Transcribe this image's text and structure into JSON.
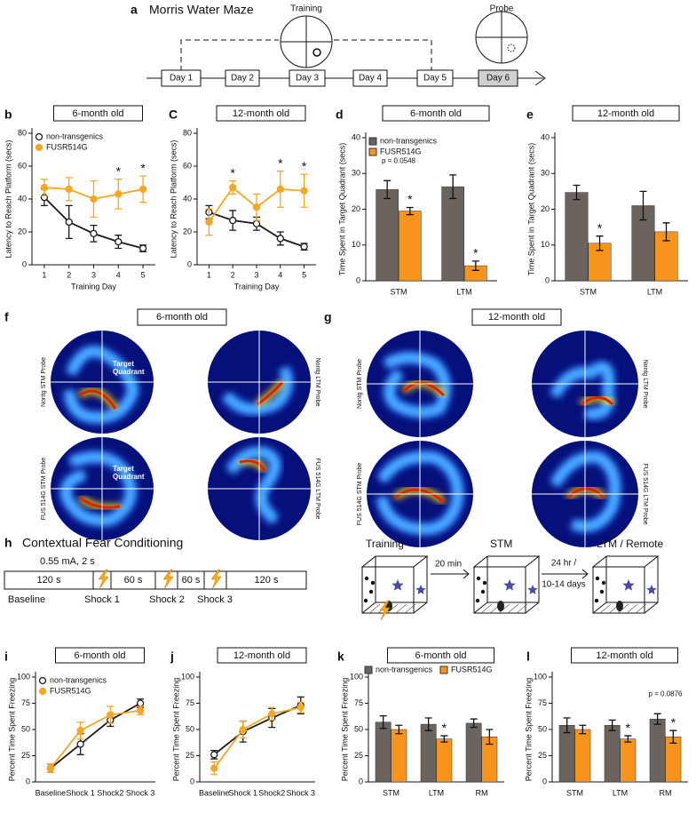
{
  "panel_a": {
    "label": "a",
    "title": "Morris Water Maze",
    "training": "Training",
    "probe": "Probe",
    "days": [
      "Day 1",
      "Day 2",
      "Day 3",
      "Day 4",
      "Day 5",
      "Day 6"
    ]
  },
  "chart_data": [
    {
      "type": "line",
      "label": "b",
      "title": "6-month old",
      "x_label": "Training Day",
      "y_label": "Latency to Reach Platform (secs)",
      "x": [
        1,
        2,
        3,
        4,
        5
      ],
      "xlim": [
        0.5,
        5.5
      ],
      "xticks": [
        1,
        2,
        3,
        4,
        5
      ],
      "ylim": [
        0,
        80
      ],
      "yticks": [
        0,
        20,
        40,
        60,
        80
      ],
      "legend": "top-left",
      "series": [
        {
          "name": "non-transgenics",
          "color": "#1a1a1a",
          "values": [
            41,
            26,
            19,
            14,
            10
          ],
          "errors": [
            5,
            10,
            5,
            4,
            2
          ]
        },
        {
          "name": "FUSR514G",
          "color": "#f5a623",
          "values": [
            47,
            46,
            40,
            43,
            46
          ],
          "errors": [
            5,
            7,
            11,
            9,
            8
          ],
          "significance": [
            null,
            null,
            null,
            "*",
            "*"
          ]
        }
      ]
    },
    {
      "type": "line",
      "label": "C",
      "title": "12-month old",
      "x_label": "Training Day",
      "y_label": "Latency to Reach Platform (secs)",
      "x": [
        1,
        2,
        3,
        4,
        5
      ],
      "xlim": [
        0.5,
        5.5
      ],
      "xticks": [
        1,
        2,
        3,
        4,
        5
      ],
      "ylim": [
        0,
        80
      ],
      "yticks": [
        0,
        20,
        40,
        60,
        80
      ],
      "series": [
        {
          "color": "#1a1a1a",
          "values": [
            32,
            27,
            25,
            16,
            11
          ],
          "errors": [
            4,
            6,
            4,
            4,
            2
          ]
        },
        {
          "color": "#f5a623",
          "values": [
            26,
            47,
            35,
            46,
            45
          ],
          "errors": [
            8,
            4,
            8,
            11,
            10
          ],
          "significance": [
            null,
            "*",
            null,
            "*",
            "*"
          ]
        }
      ]
    },
    {
      "type": "bar",
      "label": "d",
      "title": "6-month old",
      "y_label": "Time Spent in Target Quadrant (secs)",
      "categories": [
        "STM",
        "LTM"
      ],
      "ylim": [
        0,
        40
      ],
      "yticks": [
        0,
        10,
        20,
        30,
        40
      ],
      "legend": "top-left",
      "annotation": {
        "text": "p = 0.0548",
        "index": 0
      },
      "series": [
        {
          "name": "non-transgenics",
          "color": "#6b635e",
          "values": [
            25.5,
            26.3
          ],
          "errors": [
            2.5,
            3.3
          ]
        },
        {
          "name": "FUSR514G",
          "color": "#f7941d",
          "values": [
            19.5,
            4.2
          ],
          "errors": [
            1,
            1.3
          ],
          "significance": [
            "*",
            "*"
          ]
        }
      ]
    },
    {
      "type": "bar",
      "label": "e",
      "title": "12-month old",
      "y_label": "Time Spent in Target Quadrant (secs)",
      "categories": [
        "STM",
        "LTM"
      ],
      "ylim": [
        0,
        40
      ],
      "yticks": [
        0,
        10,
        20,
        30,
        40
      ],
      "series": [
        {
          "color": "#6b635e",
          "values": [
            24.7,
            21
          ],
          "errors": [
            2,
            4
          ]
        },
        {
          "color": "#f7941d",
          "values": [
            10.5,
            13.7
          ],
          "errors": [
            2,
            2.5
          ],
          "significance": [
            "*",
            null
          ]
        }
      ]
    },
    {
      "type": "line",
      "label": "i",
      "title": "6-month old",
      "y_label": "Percent Time Spent Freezing",
      "categories": [
        "Baseline",
        "Shock 1",
        "Shock2",
        "Shock 3"
      ],
      "ylim": [
        0,
        100
      ],
      "yticks": [
        0,
        25,
        50,
        75,
        100
      ],
      "legend": "top-left",
      "series": [
        {
          "name": "non-transgenics",
          "color": "#1a1a1a",
          "values": [
            13,
            36,
            59,
            75
          ],
          "errors": [
            4,
            10,
            6,
            4
          ]
        },
        {
          "name": "FUSR514G",
          "color": "#f5a623",
          "values": [
            13,
            49,
            64,
            68
          ],
          "errors": [
            4,
            8,
            8,
            4
          ]
        }
      ]
    },
    {
      "type": "line",
      "label": "j",
      "title": "12-month old",
      "y_label": "Percent Time Spent Freezing",
      "categories": [
        "Baseline",
        "Shock 1",
        "Shock2",
        "Shock 3"
      ],
      "ylim": [
        0,
        100
      ],
      "yticks": [
        0,
        25,
        50,
        75,
        100
      ],
      "series": [
        {
          "color": "#1a1a1a",
          "values": [
            26,
            48,
            61,
            73
          ],
          "errors": [
            4,
            10,
            9,
            8
          ]
        },
        {
          "color": "#f5a623",
          "values": [
            13,
            50,
            65,
            71
          ],
          "errors": [
            6,
            8,
            6,
            5
          ]
        }
      ]
    },
    {
      "type": "bar",
      "label": "k",
      "title": "6-month old",
      "y_label": "Percent Time Spent Freezing",
      "categories": [
        "STM",
        "LTM",
        "RM"
      ],
      "ylim": [
        0,
        100
      ],
      "yticks": [
        0,
        25,
        50,
        75,
        100
      ],
      "legend": "top",
      "series": [
        {
          "name": "non-transgenics",
          "color": "#6b635e",
          "values": [
            57,
            55,
            56
          ],
          "errors": [
            6,
            6,
            4
          ]
        },
        {
          "name": "FUSR514G",
          "color": "#f7941d",
          "values": [
            50,
            41,
            43
          ],
          "errors": [
            4,
            3,
            7
          ],
          "significance": [
            null,
            "*",
            null
          ]
        }
      ]
    },
    {
      "type": "bar",
      "label": "l",
      "title": "12-month old",
      "y_label": "Percent Time Spent Freezing",
      "categories": [
        "STM",
        "LTM",
        "RM"
      ],
      "ylim": [
        0,
        100
      ],
      "yticks": [
        0,
        25,
        50,
        75,
        100
      ],
      "annotation": {
        "text": "p = 0.0876",
        "index": 2
      },
      "series": [
        {
          "color": "#6b635e",
          "values": [
            54,
            54,
            60
          ],
          "errors": [
            7,
            5,
            5
          ]
        },
        {
          "color": "#f7941d",
          "values": [
            50,
            41,
            43
          ],
          "errors": [
            4,
            3,
            6
          ],
          "significance": [
            null,
            "*",
            "*"
          ]
        }
      ]
    }
  ],
  "heatmaps": [
    {
      "label": "f",
      "title": "6-month old",
      "probes": [
        "Nontg STM Probe",
        "Nontg LTM Probe",
        "FUS 514G STM Probe",
        "FUS 514G LTM Probe"
      ],
      "target_labels": [
        [
          "Target",
          "Quadrant"
        ],
        [
          "Target",
          "Quadrant"
        ]
      ]
    },
    {
      "label": "g",
      "title": "12-month old",
      "probes": [
        "Nontg STM Probe",
        "Nontg LTM Probe",
        "FUS 514G STM Probe",
        "FUS 514G LTM Probe"
      ]
    }
  ],
  "fear_conditioning": {
    "label": "h",
    "title": "Contextual Fear Conditioning",
    "shock_params": "0.55 mA, 2 s",
    "intervals": [
      "120 s",
      "60 s",
      "60 s",
      "120 s"
    ],
    "events": [
      "Baseline",
      "Shock 1",
      "Shock 2",
      "Shock 3"
    ],
    "contexts": [
      "Training",
      "STM",
      "LTM / Remote"
    ],
    "delay_1": "20 min",
    "delay_2": [
      "24 hr /",
      "10-14 days"
    ]
  }
}
